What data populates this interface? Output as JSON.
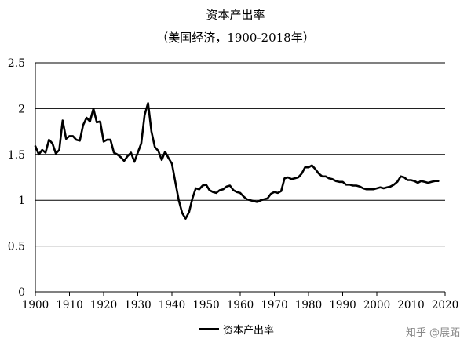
{
  "chart_data": {
    "type": "line",
    "title": "资本产出率",
    "subtitle": "（美国经济，1900-2018年）",
    "xlabel": "",
    "ylabel": "",
    "xlim": [
      1900,
      2020
    ],
    "ylim": [
      0,
      2.5
    ],
    "x_ticks": [
      1900,
      1910,
      1920,
      1930,
      1940,
      1950,
      1960,
      1970,
      1980,
      1990,
      2000,
      2010,
      2020
    ],
    "y_ticks": [
      0,
      0.5,
      1,
      1.5,
      2,
      2.5
    ],
    "y_tick_labels": [
      "0",
      "0.5",
      "1",
      "1.5",
      "2",
      "2.5"
    ],
    "grid": "horizontal",
    "legend_position": "bottom",
    "series": [
      {
        "name": "资本产出率",
        "color": "#000000",
        "x": [
          1900,
          1901,
          1902,
          1903,
          1904,
          1905,
          1906,
          1907,
          1908,
          1909,
          1910,
          1911,
          1912,
          1913,
          1914,
          1915,
          1916,
          1917,
          1918,
          1919,
          1920,
          1921,
          1922,
          1923,
          1924,
          1925,
          1926,
          1927,
          1928,
          1929,
          1930,
          1931,
          1932,
          1933,
          1934,
          1935,
          1936,
          1937,
          1938,
          1939,
          1940,
          1941,
          1942,
          1943,
          1944,
          1945,
          1946,
          1947,
          1948,
          1949,
          1950,
          1951,
          1952,
          1953,
          1954,
          1955,
          1956,
          1957,
          1958,
          1959,
          1960,
          1961,
          1962,
          1963,
          1964,
          1965,
          1966,
          1967,
          1968,
          1969,
          1970,
          1971,
          1972,
          1973,
          1974,
          1975,
          1976,
          1977,
          1978,
          1979,
          1980,
          1981,
          1982,
          1983,
          1984,
          1985,
          1986,
          1987,
          1988,
          1989,
          1990,
          1991,
          1992,
          1993,
          1994,
          1995,
          1996,
          1997,
          1998,
          1999,
          2000,
          2001,
          2002,
          2003,
          2004,
          2005,
          2006,
          2007,
          2008,
          2009,
          2010,
          2011,
          2012,
          2013,
          2014,
          2015,
          2016,
          2017,
          2018
        ],
        "values": [
          1.59,
          1.5,
          1.55,
          1.52,
          1.66,
          1.62,
          1.51,
          1.55,
          1.87,
          1.67,
          1.7,
          1.7,
          1.66,
          1.65,
          1.82,
          1.9,
          1.86,
          2.0,
          1.85,
          1.86,
          1.64,
          1.66,
          1.66,
          1.52,
          1.5,
          1.47,
          1.43,
          1.48,
          1.52,
          1.42,
          1.52,
          1.62,
          1.93,
          2.06,
          1.75,
          1.58,
          1.54,
          1.44,
          1.53,
          1.46,
          1.4,
          1.2,
          1.0,
          0.86,
          0.8,
          0.87,
          1.02,
          1.13,
          1.12,
          1.16,
          1.17,
          1.11,
          1.09,
          1.08,
          1.11,
          1.12,
          1.15,
          1.16,
          1.11,
          1.09,
          1.08,
          1.04,
          1.01,
          1.0,
          0.99,
          0.98,
          1.0,
          1.01,
          1.02,
          1.07,
          1.09,
          1.08,
          1.1,
          1.24,
          1.25,
          1.23,
          1.24,
          1.25,
          1.29,
          1.36,
          1.36,
          1.38,
          1.34,
          1.29,
          1.26,
          1.26,
          1.24,
          1.23,
          1.21,
          1.2,
          1.2,
          1.17,
          1.17,
          1.16,
          1.16,
          1.15,
          1.13,
          1.12,
          1.12,
          1.12,
          1.13,
          1.14,
          1.13,
          1.14,
          1.15,
          1.17,
          1.2,
          1.26,
          1.25,
          1.22,
          1.22,
          1.21,
          1.19,
          1.21,
          1.2,
          1.19,
          1.2,
          1.21,
          1.21
        ]
      }
    ]
  },
  "watermark": "知乎 @展跖"
}
